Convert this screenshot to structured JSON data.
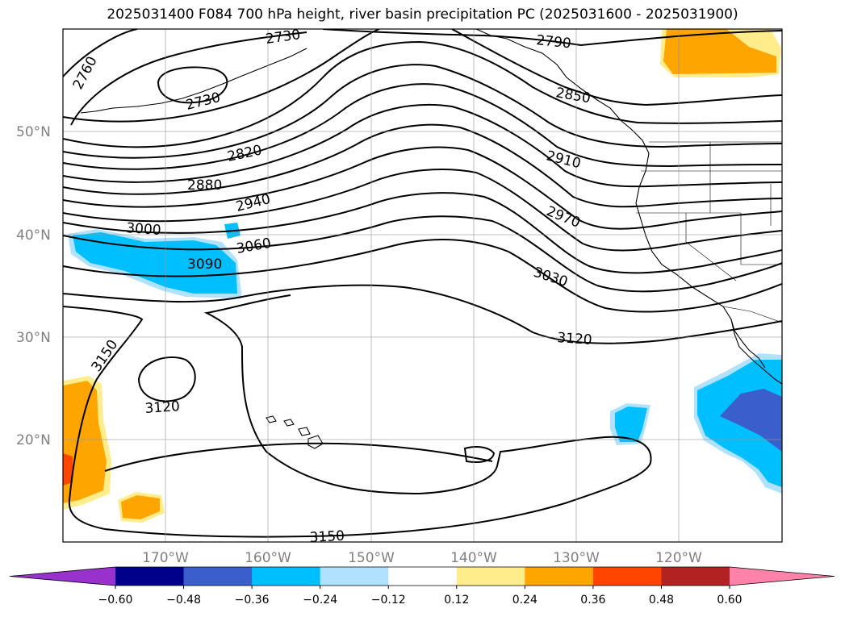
{
  "title": "2025031400 F084 700 hPa height, river basin precipitation PC (2025031600 - 2025031900)",
  "lat_labels": [
    "50°N",
    "40°N",
    "30°N",
    "20°N"
  ],
  "lon_labels": [
    "170°W",
    "160°W",
    "150°W",
    "140°W",
    "130°W",
    "120°W"
  ],
  "contour_labels": [
    "2730",
    "2760",
    "2730",
    "2790",
    "2850",
    "2820",
    "2880",
    "2940",
    "2910",
    "3000",
    "3060",
    "3090",
    "2970",
    "3030",
    "3120",
    "3150",
    "3120",
    "3150"
  ],
  "colorbar": {
    "tick_labels": [
      "−0.60",
      "−0.48",
      "−0.36",
      "−0.24",
      "−0.12",
      "0.12",
      "0.24",
      "0.36",
      "0.48",
      "0.60"
    ],
    "colors": [
      "#9932cc",
      "#00008b",
      "#3a5fcd",
      "#00bfff",
      "#b0e2ff",
      "#ffffff",
      "#ffec8b",
      "#ffa500",
      "#ff4500",
      "#b22222",
      "#ff82ab"
    ]
  },
  "colors": {
    "positive_orange": "#ffa500",
    "positive_yellow": "#ffec8b",
    "positive_red": "#ff4500",
    "negative_light": "#b0e2ff",
    "negative_cyan": "#00bfff",
    "negative_blue": "#3a5fcd"
  }
}
